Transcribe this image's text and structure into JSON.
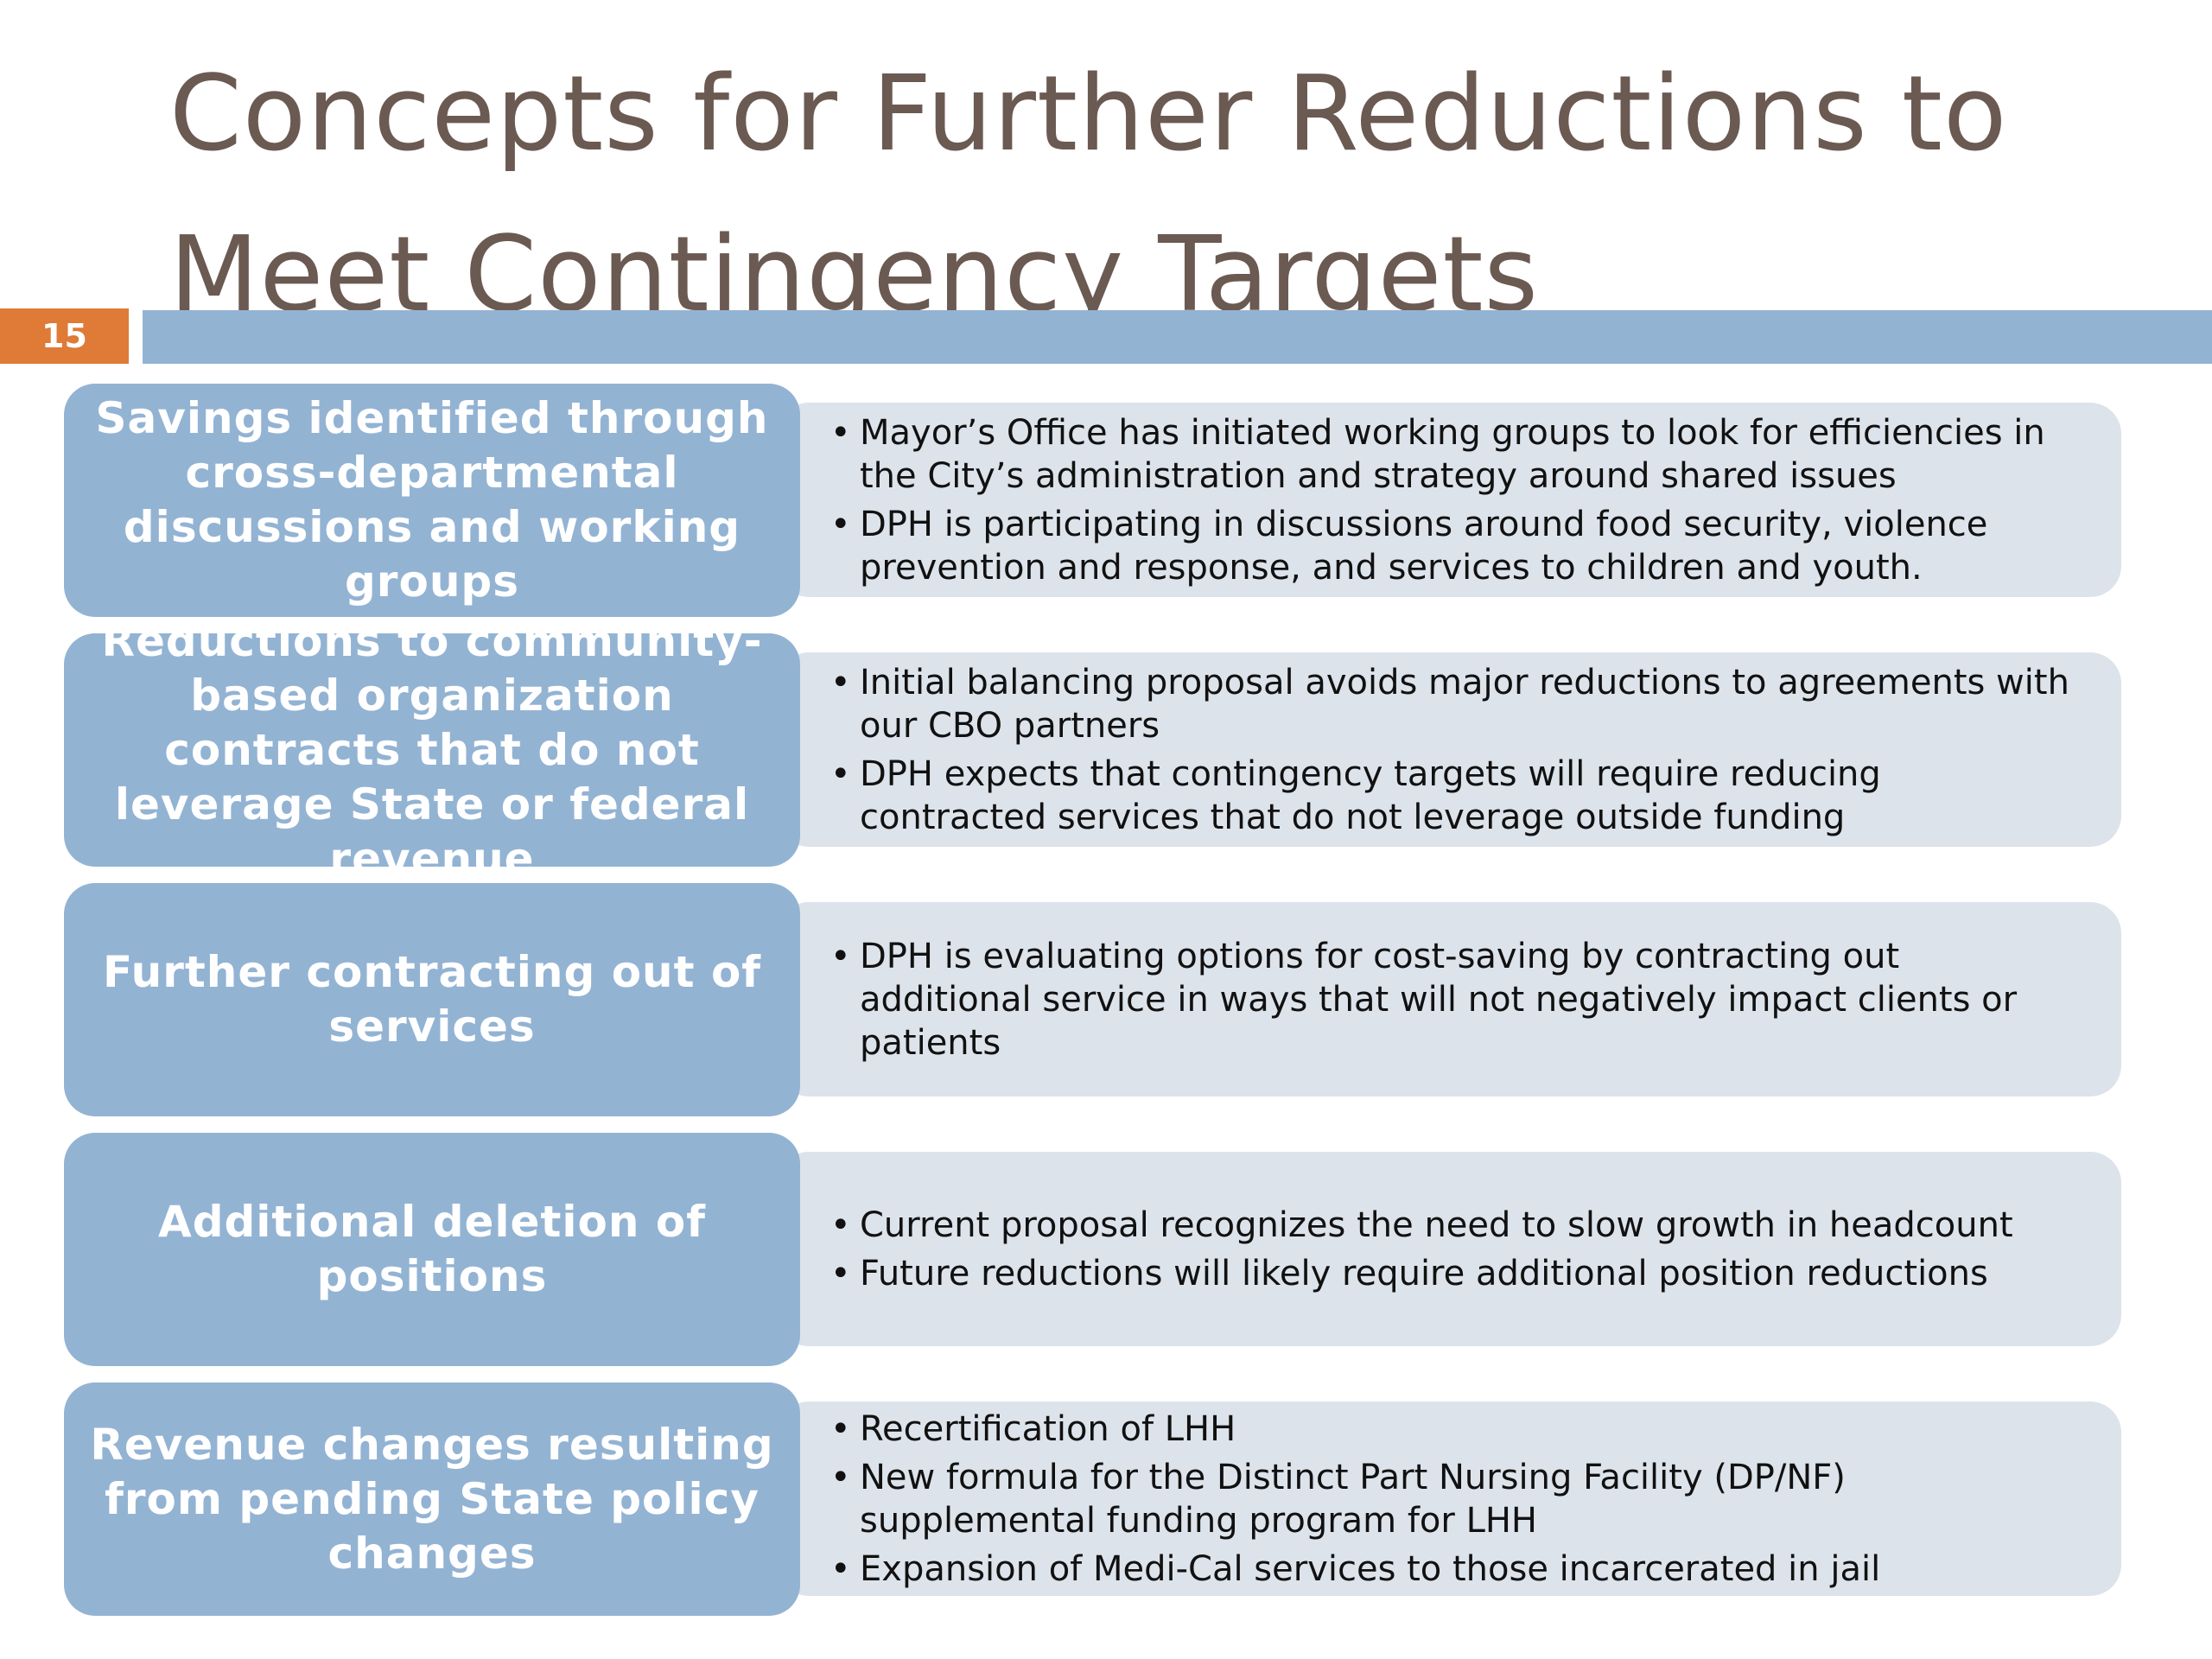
{
  "slide": {
    "title_line1": "Concepts for Further Reductions to",
    "title_line2": "Meet Contingency Targets",
    "page_number": "15"
  },
  "colors": {
    "title_text": "#6b5a52",
    "accent_orange": "#df7a37",
    "accent_blue": "#93b3d3",
    "detail_background": "#dde3eb"
  },
  "rows": [
    {
      "label": "Savings identified through cross-departmental discussions and working groups",
      "bullets": [
        "Mayor’s Office has initiated working groups to look for efficiencies in the City’s administration and strategy around shared issues",
        "DPH is participating in discussions around food security, violence prevention and response, and services to children and youth."
      ]
    },
    {
      "label": "Reductions to community-based organization contracts that do not leverage State or federal revenue",
      "bullets": [
        "Initial balancing proposal avoids major reductions to agreements with our CBO partners",
        "DPH expects that contingency targets will require reducing contracted services that do not leverage outside funding"
      ]
    },
    {
      "label": "Further contracting out of services",
      "bullets": [
        "DPH is evaluating options for cost-saving by contracting out additional service in ways that will not negatively impact clients or patients"
      ]
    },
    {
      "label": "Additional deletion of positions",
      "bullets": [
        "Current proposal recognizes the need to slow growth in headcount",
        "Future reductions will likely require additional position reductions"
      ]
    },
    {
      "label": "Revenue changes resulting from pending State policy changes",
      "bullets": [
        "Recertification of LHH",
        "New formula for the Distinct Part Nursing Facility (DP/NF) supplemental funding program for LHH",
        "Expansion of Medi-Cal services to those incarcerated in jail"
      ]
    }
  ]
}
